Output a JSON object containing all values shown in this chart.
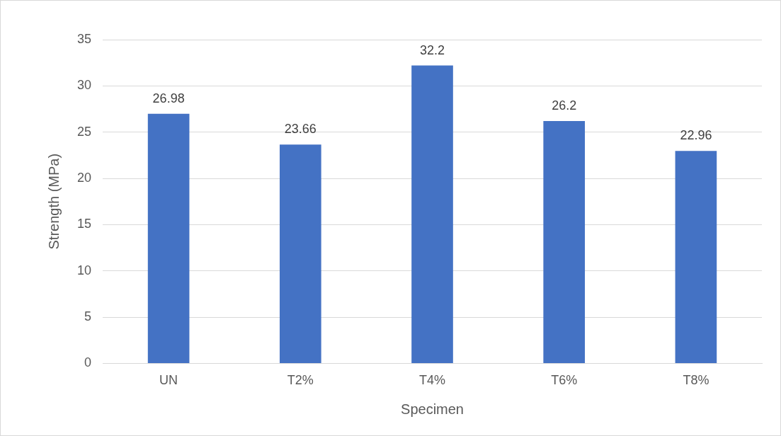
{
  "chart_data": {
    "type": "bar",
    "xlabel": "Specimen",
    "ylabel": "Strength (MPa)",
    "categories": [
      "UN",
      "T2%",
      "T4%",
      "T6%",
      "T8%"
    ],
    "values": [
      26.98,
      23.66,
      32.2,
      26.2,
      22.96
    ],
    "color": "#4472c4",
    "ylim": [
      0,
      35
    ],
    "yticks": [
      0,
      5,
      10,
      15,
      20,
      25,
      30,
      35
    ],
    "grid": "y",
    "data_labels": true
  }
}
